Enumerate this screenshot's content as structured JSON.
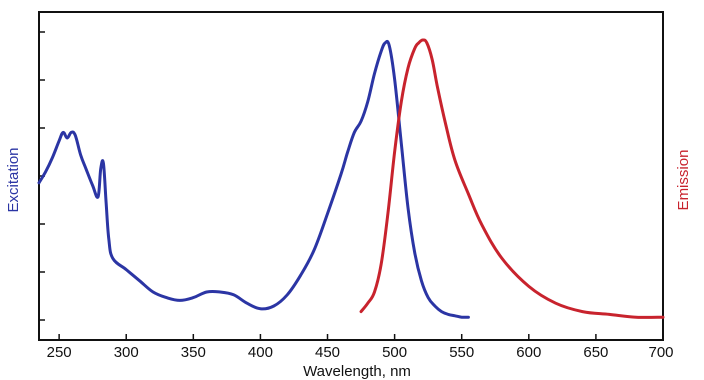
{
  "chart_data": {
    "type": "line",
    "xlabel": "Wavelength, nm",
    "ylabel_left": "Excitation",
    "ylabel_right": "Emission",
    "xlim": [
      235,
      700
    ],
    "ylim": [
      0,
      1
    ],
    "x_ticks": [
      250,
      300,
      350,
      400,
      450,
      500,
      550,
      600,
      650,
      700
    ],
    "y_tick_count": 7,
    "grid": false,
    "series": [
      {
        "name": "Excitation",
        "color": "#2b35a4",
        "x": [
          235,
          240,
          245,
          250,
          253,
          256,
          259,
          262,
          266,
          270,
          275,
          279,
          281,
          283,
          285,
          287,
          290,
          300,
          310,
          320,
          330,
          340,
          350,
          360,
          370,
          380,
          390,
          400,
          410,
          420,
          430,
          440,
          450,
          460,
          465,
          470,
          475,
          480,
          485,
          490,
          493,
          496,
          500,
          505,
          510,
          515,
          520,
          525,
          530,
          535,
          540,
          545,
          550,
          555
        ],
        "y": [
          0.49,
          0.53,
          0.58,
          0.64,
          0.67,
          0.65,
          0.67,
          0.66,
          0.59,
          0.54,
          0.48,
          0.44,
          0.54,
          0.56,
          0.42,
          0.29,
          0.22,
          0.18,
          0.14,
          0.1,
          0.08,
          0.07,
          0.08,
          0.1,
          0.1,
          0.09,
          0.06,
          0.04,
          0.05,
          0.09,
          0.16,
          0.25,
          0.38,
          0.52,
          0.6,
          0.67,
          0.71,
          0.78,
          0.88,
          0.96,
          0.99,
          0.98,
          0.86,
          0.63,
          0.4,
          0.24,
          0.14,
          0.08,
          0.05,
          0.03,
          0.02,
          0.015,
          0.01,
          0.01
        ]
      },
      {
        "name": "Emission",
        "color": "#c8232d",
        "x": [
          475,
          480,
          485,
          490,
          495,
          500,
          505,
          510,
          515,
          518,
          521,
          524,
          528,
          532,
          538,
          545,
          555,
          565,
          580,
          600,
          620,
          640,
          660,
          680,
          700
        ],
        "y": [
          0.03,
          0.06,
          0.1,
          0.2,
          0.38,
          0.6,
          0.78,
          0.9,
          0.97,
          0.99,
          1.0,
          0.99,
          0.93,
          0.83,
          0.7,
          0.57,
          0.45,
          0.34,
          0.22,
          0.12,
          0.06,
          0.03,
          0.02,
          0.01,
          0.01
        ]
      }
    ]
  }
}
